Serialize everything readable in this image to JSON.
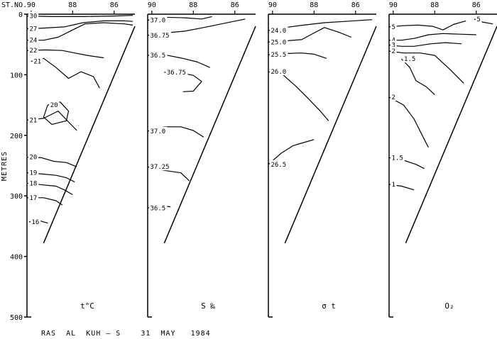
{
  "chart_data": {
    "type": "contour-section",
    "station_axis_title": "ST.NO.",
    "station_ticks": [
      "90",
      "88",
      "86"
    ],
    "depth_axis_title": "METRES",
    "depth_ticks": [
      "0",
      "100",
      "200",
      "300",
      "400",
      "500"
    ],
    "ylim": [
      0,
      500
    ],
    "caption": "RAS  AL  KUH — S    31  MAY   1984",
    "panels": [
      {
        "label": "t°C",
        "contours": [
          {
            "label": "30",
            "points": [
              [
                90.2,
                3
              ],
              [
                89.0,
                4
              ],
              [
                87.5,
                4
              ],
              [
                86,
                3
              ],
              [
                85.1,
                2
              ]
            ]
          },
          {
            "label": "27",
            "points": [
              [
                90.2,
                24
              ],
              [
                89.4,
                23
              ],
              [
                88.4,
                21
              ],
              [
                87.5,
                14
              ],
              [
                86.5,
                11
              ],
              [
                85.5,
                11
              ],
              [
                85.1,
                12
              ]
            ]
          },
          {
            "label": "24",
            "points": [
              [
                90.2,
                43
              ],
              [
                89.4,
                43
              ],
              [
                88.7,
                38
              ],
              [
                88.0,
                26
              ],
              [
                87.4,
                16
              ],
              [
                86.5,
                14
              ],
              [
                85.5,
                16
              ],
              [
                85.1,
                18
              ]
            ]
          },
          {
            "label": "22",
            "points": [
              [
                90.2,
                60
              ],
              [
                89.3,
                59
              ],
              [
                88.5,
                60
              ],
              [
                87.9,
                64
              ],
              [
                87.3,
                68
              ],
              [
                86.5,
                72
              ]
            ]
          },
          {
            "label": "21",
            "points": [
              [
                90.0,
                78
              ],
              [
                89.4,
                73
              ],
              [
                88.8,
                88
              ],
              [
                88.2,
                106
              ],
              [
                87.6,
                95
              ],
              [
                87.0,
                103
              ],
              [
                86.7,
                122
              ]
            ]
          },
          {
            "label": "21",
            "points": [
              [
                90.2,
                175
              ],
              [
                89.4,
                172
              ],
              [
                88.7,
                160
              ],
              [
                88.2,
                178
              ],
              [
                87.8,
                192
              ]
            ]
          },
          {
            "label": "20",
            "points": [
              [
                89.2,
                150
              ],
              [
                89.4,
                170
              ],
              [
                89.0,
                182
              ],
              [
                88.3,
                176
              ],
              [
                88.2,
                160
              ],
              [
                88.6,
                145
              ],
              [
                89.2,
                150
              ]
            ]
          },
          {
            "label": "20",
            "points": [
              [
                90.2,
                236
              ],
              [
                89.5,
                237
              ],
              [
                88.9,
                243
              ],
              [
                88.3,
                245
              ],
              [
                87.8,
                252
              ]
            ]
          },
          {
            "label": "19",
            "points": [
              [
                90.2,
                262
              ],
              [
                89.4,
                264
              ],
              [
                88.8,
                266
              ],
              [
                88.3,
                270
              ],
              [
                87.9,
                277
              ]
            ]
          },
          {
            "label": "18",
            "points": [
              [
                90.2,
                279
              ],
              [
                89.4,
                282
              ],
              [
                88.8,
                284
              ],
              [
                88.4,
                290
              ],
              [
                88.0,
                298
              ]
            ]
          },
          {
            "label": "17",
            "points": [
              [
                90.2,
                303
              ],
              [
                89.4,
                303
              ],
              [
                88.8,
                308
              ],
              [
                88.5,
                315
              ]
            ]
          },
          {
            "label": "16",
            "points": [
              [
                90.1,
                343
              ],
              [
                89.6,
                341
              ],
              [
                89.2,
                345
              ]
            ]
          }
        ]
      },
      {
        "label": "S ‰",
        "contours": [
          {
            "label": "37.0",
            "points": [
              [
                90.2,
                10
              ],
              [
                89.4,
                5
              ],
              [
                88.4,
                6
              ],
              [
                87.6,
                8
              ],
              [
                87.1,
                4
              ]
            ]
          },
          {
            "label": "36.75",
            "points": [
              [
                90.2,
                35
              ],
              [
                89.4,
                31
              ],
              [
                88.4,
                28
              ],
              [
                87.5,
                22
              ],
              [
                86.5,
                15
              ],
              [
                85.5,
                8
              ]
            ]
          },
          {
            "label": "36.5",
            "points": [
              [
                90.2,
                68
              ],
              [
                89.4,
                67
              ],
              [
                88.5,
                73
              ],
              [
                87.8,
                79
              ],
              [
                87.2,
                88
              ]
            ]
          },
          {
            "label": "36.75",
            "points": [
              [
                89.4,
                96
              ],
              [
                88.7,
                96
              ],
              [
                88.0,
                101
              ],
              [
                87.6,
                111
              ],
              [
                88.0,
                127
              ],
              [
                88.5,
                128
              ]
            ]
          },
          {
            "label": "37.0",
            "points": [
              [
                90.2,
                193
              ],
              [
                89.4,
                186
              ],
              [
                88.6,
                186
              ],
              [
                88.0,
                192
              ],
              [
                87.5,
                203
              ]
            ]
          },
          {
            "label": "37.25",
            "points": [
              [
                90.2,
                252
              ],
              [
                89.4,
                258
              ],
              [
                88.6,
                262
              ],
              [
                88.2,
                275
              ]
            ]
          },
          {
            "label": "36.5",
            "points": [
              [
                90.2,
                320
              ],
              [
                89.6,
                316
              ],
              [
                89.1,
                318
              ]
            ]
          }
        ]
      },
      {
        "label": "σ t",
        "contours": [
          {
            "label": "24.0",
            "points": [
              [
                90.2,
                27
              ],
              [
                89.4,
                22
              ],
              [
                88.5,
                18
              ],
              [
                87.5,
                14
              ],
              [
                86.5,
                12
              ],
              [
                85.2,
                9
              ]
            ]
          },
          {
            "label": "25.0",
            "points": [
              [
                90.2,
                46
              ],
              [
                89.4,
                44
              ],
              [
                88.6,
                42
              ],
              [
                88.0,
                31
              ],
              [
                87.5,
                22
              ],
              [
                86.8,
                30
              ],
              [
                86.2,
                38
              ]
            ]
          },
          {
            "label": "25.5",
            "points": [
              [
                90.2,
                67
              ],
              [
                89.4,
                65
              ],
              [
                88.6,
                64
              ],
              [
                88.0,
                66
              ],
              [
                87.4,
                73
              ]
            ]
          },
          {
            "label": "26.0",
            "points": [
              [
                90.2,
                95
              ],
              [
                89.5,
                100
              ],
              [
                88.9,
                118
              ],
              [
                88.4,
                135
              ],
              [
                87.7,
                160
              ],
              [
                87.3,
                176
              ]
            ]
          },
          {
            "label": "26.5",
            "points": [
              [
                90.2,
                248
              ],
              [
                89.6,
                230
              ],
              [
                89.0,
                217
              ],
              [
                88.5,
                212
              ],
              [
                88.0,
                207
              ]
            ]
          }
        ]
      },
      {
        "label": "O₂",
        "contours": [
          {
            "label": "5",
            "points": [
              [
                90.2,
                21
              ],
              [
                89.5,
                19
              ],
              [
                88.8,
                18
              ],
              [
                88.1,
                20
              ],
              [
                87.6,
                26
              ],
              [
                87.1,
                17
              ],
              [
                86.5,
                11
              ]
            ]
          },
          {
            "label": "5",
            "points": [
              [
                86.1,
                8
              ],
              [
                85.7,
                13
              ],
              [
                85.2,
                16
              ]
            ]
          },
          {
            "label": "4",
            "points": [
              [
                90.2,
                43
              ],
              [
                89.6,
                43
              ],
              [
                89.0,
                40
              ],
              [
                88.3,
                34
              ],
              [
                87.6,
                32
              ],
              [
                86.8,
                33
              ],
              [
                86.0,
                34
              ]
            ]
          },
          {
            "label": "3",
            "points": [
              [
                90.2,
                51
              ],
              [
                89.6,
                53
              ],
              [
                89.0,
                53
              ],
              [
                88.2,
                49
              ],
              [
                87.5,
                47
              ],
              [
                86.7,
                49
              ]
            ]
          },
          {
            "label": "2",
            "points": [
              [
                90.2,
                61
              ],
              [
                89.5,
                64
              ],
              [
                88.7,
                64
              ],
              [
                88.0,
                68
              ],
              [
                87.3,
                90
              ],
              [
                86.6,
                114
              ]
            ]
          },
          {
            "label": "1.5",
            "points": [
              [
                89.6,
                74
              ],
              [
                89.2,
                88
              ],
              [
                88.9,
                110
              ],
              [
                88.4,
                120
              ],
              [
                88.0,
                133
              ]
            ]
          },
          {
            "label": "2",
            "points": [
              [
                90.2,
                137
              ],
              [
                89.5,
                150
              ],
              [
                89.0,
                173
              ],
              [
                88.5,
                207
              ],
              [
                88.3,
                220
              ]
            ]
          },
          {
            "label": "1.5",
            "points": [
              [
                90.2,
                237
              ],
              [
                89.6,
                240
              ],
              [
                88.9,
                248
              ],
              [
                88.5,
                255
              ]
            ]
          },
          {
            "label": "1",
            "points": [
              [
                90.2,
                281
              ],
              [
                89.6,
                284
              ],
              [
                89.0,
                290
              ]
            ]
          }
        ]
      }
    ]
  }
}
